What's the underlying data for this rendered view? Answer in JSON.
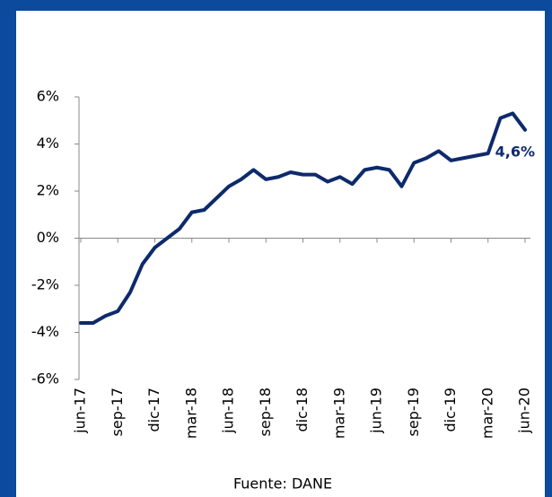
{
  "chart_data": {
    "type": "line",
    "categories": [
      "jun-17",
      null,
      null,
      "sep-17",
      null,
      null,
      "dic-17",
      null,
      null,
      "mar-18",
      null,
      null,
      "jun-18",
      null,
      null,
      "sep-18",
      null,
      null,
      "dic-18",
      null,
      null,
      "mar-19",
      null,
      null,
      "jun-19",
      null,
      null,
      "sep-19",
      null,
      null,
      "dic-19",
      null,
      null,
      "mar-20",
      null,
      null,
      "jun-20"
    ],
    "series": [
      {
        "color": "#0d2a6b",
        "values": [
          -3.6,
          -3.6,
          -3.3,
          -3.1,
          -2.3,
          -1.1,
          -0.4,
          0.0,
          0.4,
          1.1,
          1.2,
          1.7,
          2.2,
          2.5,
          2.9,
          2.5,
          2.6,
          2.8,
          2.7,
          2.7,
          2.4,
          2.6,
          2.3,
          2.9,
          3.0,
          2.9,
          2.2,
          3.2,
          3.4,
          3.7,
          3.3,
          3.4,
          3.5,
          3.6,
          5.1,
          5.3,
          4.6
        ]
      }
    ],
    "ylim": [
      -6,
      6
    ],
    "yticks": [
      {
        "value": -6,
        "label": "-6%"
      },
      {
        "value": -4,
        "label": "-4%"
      },
      {
        "value": -2,
        "label": "-2%"
      },
      {
        "value": 0,
        "label": "0%"
      },
      {
        "value": 2,
        "label": "2%"
      },
      {
        "value": 4,
        "label": "4%"
      },
      {
        "value": 6,
        "label": "6%"
      }
    ],
    "annotation": "4,6%",
    "source": "Fuente: DANE"
  }
}
